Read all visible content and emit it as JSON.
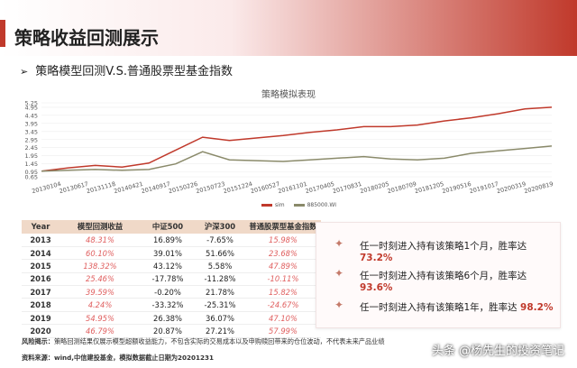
{
  "header": {
    "title": "策略收益回测展示",
    "subtitle": "策略模型回测V.S.普通股票型基金指数"
  },
  "chart_data": {
    "type": "line",
    "title": "策略模拟表现",
    "ylim": [
      0.65,
      5.0
    ],
    "yticks": [
      "5.25",
      "4.95",
      "4.45",
      "3.95",
      "3.45",
      "2.95",
      "2.45",
      "1.95",
      "1.45",
      "0.95",
      "0.65"
    ],
    "ytick_values": [
      5.25,
      4.95,
      4.45,
      3.95,
      3.45,
      2.95,
      2.45,
      1.95,
      1.45,
      0.95,
      0.65
    ],
    "xticks": [
      "20130104",
      "20130617",
      "20131118",
      "20140421",
      "20140917",
      "20150226",
      "20150723",
      "20151224",
      "20160527",
      "20161101",
      "20170405",
      "20170831",
      "20180205",
      "20180709",
      "20181205",
      "20190516",
      "20191017",
      "20200319",
      "20200819"
    ],
    "series": [
      {
        "name": "sim",
        "color": "#c0392b",
        "values": [
          1.0,
          1.2,
          1.35,
          1.25,
          1.5,
          2.3,
          3.1,
          2.9,
          3.05,
          3.2,
          3.4,
          3.55,
          3.75,
          3.75,
          3.85,
          4.1,
          4.3,
          4.55,
          4.85,
          4.95
        ]
      },
      {
        "name": "885000.WI",
        "color": "#8a8a6a",
        "values": [
          1.0,
          1.05,
          1.1,
          1.05,
          1.1,
          1.45,
          2.2,
          1.7,
          1.65,
          1.6,
          1.7,
          1.8,
          1.9,
          1.75,
          1.7,
          1.8,
          2.1,
          2.25,
          2.4,
          2.55
        ]
      }
    ]
  },
  "table": {
    "headers": [
      "Year",
      "模型回测收益",
      "中证500",
      "沪深300",
      "普通股票型基金指数"
    ],
    "rows": [
      [
        "2013",
        "48.31%",
        "16.89%",
        "-7.65%",
        "15.98%"
      ],
      [
        "2014",
        "60.10%",
        "39.01%",
        "51.66%",
        "23.68%"
      ],
      [
        "2015",
        "138.32%",
        "43.12%",
        "5.58%",
        "47.89%"
      ],
      [
        "2016",
        "25.46%",
        "-17.78%",
        "-11.28%",
        "-10.11%"
      ],
      [
        "2017",
        "39.59%",
        "-0.20%",
        "21.78%",
        "15.82%"
      ],
      [
        "2018",
        "4.24%",
        "-33.32%",
        "-25.31%",
        "-24.67%"
      ],
      [
        "2019",
        "54.95%",
        "26.38%",
        "36.07%",
        "47.10%"
      ],
      [
        "2020",
        "46.79%",
        "20.87%",
        "27.21%",
        "57.99%"
      ]
    ]
  },
  "card": {
    "items": [
      {
        "text": "任一时刻进入持有该策略1个月，胜率达",
        "pct": "73.2%"
      },
      {
        "text": "任一时刻进入持有该策略6个月，胜率达",
        "pct": "93.6%"
      },
      {
        "text": "任一时刻进入持有该策略1年，胜率达",
        "pct": "98.2%"
      }
    ]
  },
  "notes": {
    "risk_label": "风险揭示：",
    "risk_text": "策略回测结果仅展示模型超额收益能力，不包含实际的交易成本以及申购赎回带来的仓位波动，不代表未来产品业绩",
    "source": "资料来源：wind,中信建投基金，模拟数据截止日期为20201231"
  },
  "watermark": "头条 @杨先生的投资笔记"
}
